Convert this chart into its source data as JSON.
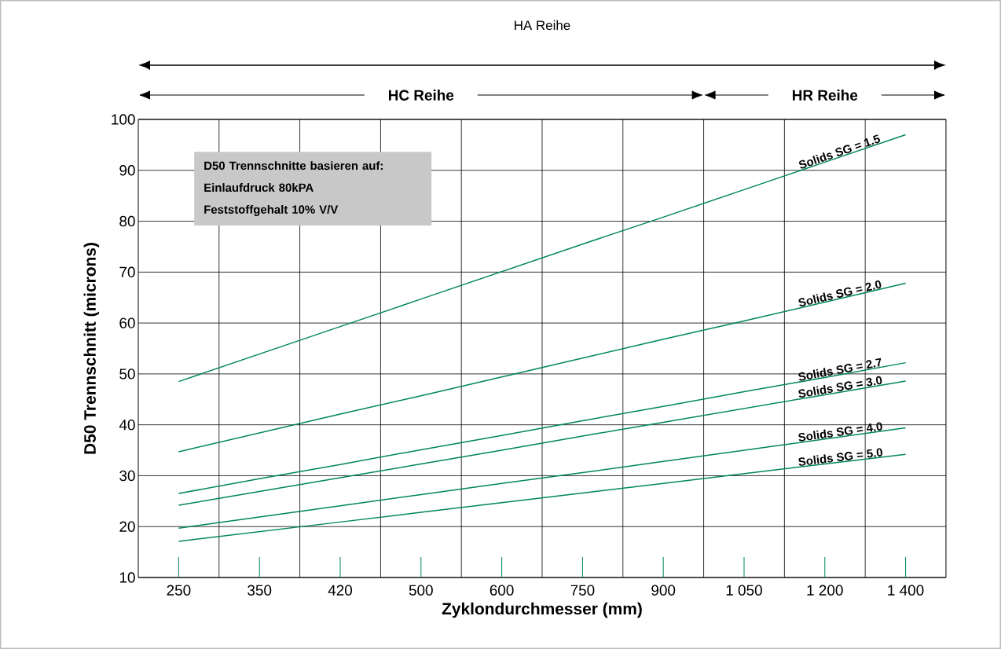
{
  "chart_data": {
    "type": "line",
    "xlabel": "Zyklondurchmesser (mm)",
    "ylabel": "D50 Trennschnitt (microns)",
    "categories": [
      "250",
      "350",
      "420",
      "500",
      "600",
      "750",
      "900",
      "1 050",
      "1 200",
      "1 400"
    ],
    "ylim": [
      10,
      100
    ],
    "yticks": [
      10,
      20,
      30,
      40,
      50,
      60,
      70,
      80,
      90,
      100
    ],
    "grid": true,
    "marker": "none",
    "line_style": "solid",
    "series": [
      {
        "name": "Solids SG = 1.5",
        "color": "#00875a",
        "values": [
          48.5,
          53.9,
          59.3,
          64.7,
          70.1,
          75.5,
          80.8,
          86.2,
          91.6,
          97.0
        ]
      },
      {
        "name": "Solids SG = 2.0",
        "color": "#00875a",
        "values": [
          34.7,
          38.4,
          42.1,
          45.7,
          49.4,
          53.1,
          56.8,
          60.4,
          64.1,
          67.8
        ]
      },
      {
        "name": "Solids SG = 2.7",
        "color": "#00875a",
        "values": [
          26.5,
          29.4,
          32.2,
          35.1,
          37.9,
          40.8,
          43.6,
          46.5,
          49.3,
          52.2
        ]
      },
      {
        "name": "Solids SG = 3.0",
        "color": "#00875a",
        "values": [
          24.2,
          26.9,
          29.6,
          32.3,
          35.0,
          37.8,
          40.5,
          43.2,
          45.9,
          48.6
        ]
      },
      {
        "name": "Solids SG = 4.0",
        "color": "#00875a",
        "values": [
          19.7,
          21.9,
          24.1,
          26.3,
          28.5,
          30.6,
          32.8,
          35.0,
          37.2,
          39.4
        ]
      },
      {
        "name": "Solids SG = 5.0",
        "color": "#00875a",
        "values": [
          17.1,
          19.0,
          20.9,
          22.8,
          24.7,
          26.6,
          28.5,
          30.4,
          32.3,
          34.2
        ]
      }
    ],
    "annotations": [
      "HA Reihe",
      "HC Reihe",
      "HR Reihe",
      "D50 Trennschnitte basieren auf:",
      "Einlaufdruck 80kPA",
      "Feststoffgehalt  10% V/V"
    ]
  }
}
